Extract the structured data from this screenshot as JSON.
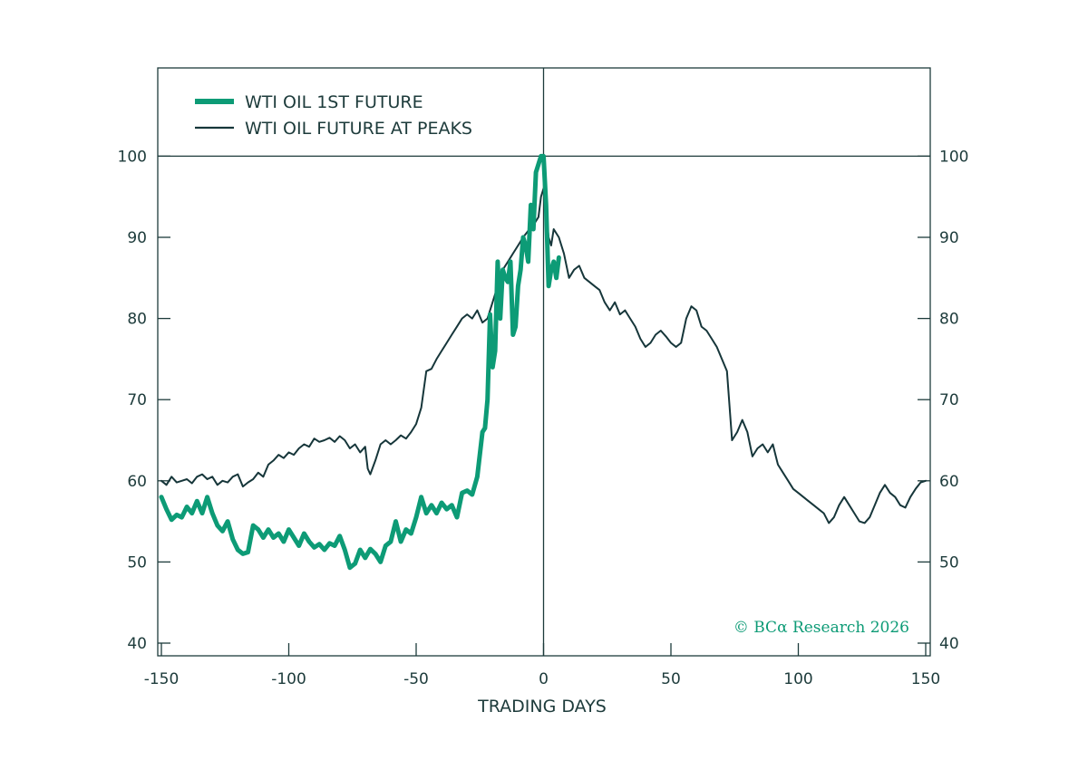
{
  "colors": {
    "primary": "#0d9b76",
    "secondary": "#16363a",
    "axis": "#1d3b3b"
  },
  "copyright": "© BCα Research 2026",
  "chart_data": {
    "type": "line",
    "xlabel": "TRADING DAYS",
    "ylabel": "",
    "xlim": [
      -150,
      150
    ],
    "ylim": [
      40,
      110
    ],
    "x_ticks": [
      "-150",
      "-100",
      "-50",
      "0",
      "50",
      "100",
      "150"
    ],
    "y_ticks": [
      "40",
      "50",
      "60",
      "70",
      "80",
      "90",
      "100"
    ],
    "legend_position": "top-left",
    "reference_lines": {
      "horizontal_y": 100,
      "vertical_x": 0
    },
    "series": [
      {
        "name": "WTI OIL 1ST FUTURE",
        "color": "#0d9b76",
        "points": [
          [
            -150,
            58
          ],
          [
            -148,
            56.5
          ],
          [
            -146,
            55.2
          ],
          [
            -144,
            55.8
          ],
          [
            -142,
            55.5
          ],
          [
            -140,
            56.8
          ],
          [
            -138,
            56
          ],
          [
            -136,
            57.5
          ],
          [
            -134,
            56
          ],
          [
            -132,
            58
          ],
          [
            -130,
            56
          ],
          [
            -128,
            54.5
          ],
          [
            -126,
            53.8
          ],
          [
            -124,
            55
          ],
          [
            -122,
            52.8
          ],
          [
            -120,
            51.5
          ],
          [
            -118,
            51
          ],
          [
            -116,
            51.2
          ],
          [
            -114,
            54.5
          ],
          [
            -112,
            54
          ],
          [
            -110,
            53
          ],
          [
            -108,
            54
          ],
          [
            -106,
            53
          ],
          [
            -104,
            53.5
          ],
          [
            -102,
            52.5
          ],
          [
            -100,
            54
          ],
          [
            -98,
            53
          ],
          [
            -96,
            52
          ],
          [
            -94,
            53.5
          ],
          [
            -92,
            52.5
          ],
          [
            -90,
            51.8
          ],
          [
            -88,
            52.2
          ],
          [
            -86,
            51.5
          ],
          [
            -84,
            52.3
          ],
          [
            -82,
            52
          ],
          [
            -80,
            53.2
          ],
          [
            -78,
            51.5
          ],
          [
            -76,
            49.3
          ],
          [
            -74,
            49.8
          ],
          [
            -72,
            51.5
          ],
          [
            -70,
            50.5
          ],
          [
            -68,
            51.6
          ],
          [
            -66,
            51
          ],
          [
            -64,
            50
          ],
          [
            -62,
            52
          ],
          [
            -60,
            52.5
          ],
          [
            -58,
            55
          ],
          [
            -56,
            52.5
          ],
          [
            -54,
            54
          ],
          [
            -52,
            53.5
          ],
          [
            -50,
            55.5
          ],
          [
            -48,
            58
          ],
          [
            -46,
            56
          ],
          [
            -44,
            57
          ],
          [
            -42,
            56
          ],
          [
            -40,
            57.3
          ],
          [
            -38,
            56.5
          ],
          [
            -36,
            57
          ],
          [
            -34,
            55.5
          ],
          [
            -32,
            58.5
          ],
          [
            -30,
            58.8
          ],
          [
            -28,
            58.3
          ],
          [
            -26,
            60.5
          ],
          [
            -24,
            66
          ],
          [
            -23,
            66.5
          ],
          [
            -22,
            70
          ],
          [
            -21,
            80.5
          ],
          [
            -20,
            74
          ],
          [
            -19,
            76
          ],
          [
            -18,
            87
          ],
          [
            -17,
            80
          ],
          [
            -16,
            86
          ],
          [
            -15,
            85
          ],
          [
            -14,
            84.5
          ],
          [
            -13,
            87
          ],
          [
            -12,
            78
          ],
          [
            -11,
            79
          ],
          [
            -10,
            84
          ],
          [
            -9,
            86
          ],
          [
            -8,
            90
          ],
          [
            -7,
            89
          ],
          [
            -6,
            87
          ],
          [
            -5,
            94
          ],
          [
            -4,
            91
          ],
          [
            -3,
            98
          ],
          [
            -2,
            99
          ],
          [
            -1,
            100
          ],
          [
            0,
            100
          ],
          [
            1,
            94
          ],
          [
            2,
            84
          ],
          [
            3,
            86
          ],
          [
            4,
            87
          ],
          [
            5,
            85
          ],
          [
            6,
            87.5
          ]
        ]
      },
      {
        "name": "WTI OIL FUTURE AT PEAKS",
        "color": "#16363a",
        "points": [
          [
            -150,
            60
          ],
          [
            -148,
            59.5
          ],
          [
            -146,
            60.5
          ],
          [
            -144,
            59.8
          ],
          [
            -142,
            60
          ],
          [
            -140,
            60.2
          ],
          [
            -138,
            59.7
          ],
          [
            -136,
            60.5
          ],
          [
            -134,
            60.8
          ],
          [
            -132,
            60.2
          ],
          [
            -130,
            60.5
          ],
          [
            -128,
            59.5
          ],
          [
            -126,
            60
          ],
          [
            -124,
            59.8
          ],
          [
            -122,
            60.5
          ],
          [
            -120,
            60.8
          ],
          [
            -118,
            59.3
          ],
          [
            -116,
            59.8
          ],
          [
            -114,
            60.2
          ],
          [
            -112,
            61
          ],
          [
            -110,
            60.5
          ],
          [
            -108,
            62
          ],
          [
            -106,
            62.5
          ],
          [
            -104,
            63.2
          ],
          [
            -102,
            62.8
          ],
          [
            -100,
            63.5
          ],
          [
            -98,
            63.2
          ],
          [
            -96,
            64
          ],
          [
            -94,
            64.5
          ],
          [
            -92,
            64.2
          ],
          [
            -90,
            65.2
          ],
          [
            -88,
            64.8
          ],
          [
            -86,
            65
          ],
          [
            -84,
            65.3
          ],
          [
            -82,
            64.8
          ],
          [
            -80,
            65.5
          ],
          [
            -78,
            65
          ],
          [
            -76,
            64
          ],
          [
            -74,
            64.5
          ],
          [
            -72,
            63.5
          ],
          [
            -70,
            64.2
          ],
          [
            -69,
            61.5
          ],
          [
            -68,
            60.8
          ],
          [
            -66,
            62.5
          ],
          [
            -64,
            64.5
          ],
          [
            -62,
            65
          ],
          [
            -60,
            64.5
          ],
          [
            -58,
            65
          ],
          [
            -56,
            65.6
          ],
          [
            -54,
            65.2
          ],
          [
            -52,
            66
          ],
          [
            -50,
            67
          ],
          [
            -48,
            69
          ],
          [
            -46,
            73.5
          ],
          [
            -44,
            73.8
          ],
          [
            -42,
            75
          ],
          [
            -40,
            76
          ],
          [
            -38,
            77
          ],
          [
            -36,
            78
          ],
          [
            -34,
            79
          ],
          [
            -32,
            80
          ],
          [
            -30,
            80.5
          ],
          [
            -28,
            80
          ],
          [
            -26,
            81
          ],
          [
            -24,
            79.5
          ],
          [
            -22,
            80
          ],
          [
            -20,
            82
          ],
          [
            -18,
            84
          ],
          [
            -16,
            86
          ],
          [
            -14,
            87
          ],
          [
            -12,
            88
          ],
          [
            -10,
            89
          ],
          [
            -8,
            90
          ],
          [
            -6,
            90.8
          ],
          [
            -4,
            91.5
          ],
          [
            -2,
            92.5
          ],
          [
            -1,
            95
          ],
          [
            0,
            96
          ],
          [
            1,
            93
          ],
          [
            2,
            90
          ],
          [
            3,
            89
          ],
          [
            4,
            91
          ],
          [
            6,
            90
          ],
          [
            8,
            88
          ],
          [
            10,
            85
          ],
          [
            12,
            86
          ],
          [
            14,
            86.5
          ],
          [
            16,
            85
          ],
          [
            18,
            84.5
          ],
          [
            20,
            84
          ],
          [
            22,
            83.5
          ],
          [
            24,
            82
          ],
          [
            26,
            81
          ],
          [
            28,
            82
          ],
          [
            30,
            80.5
          ],
          [
            32,
            81
          ],
          [
            34,
            80
          ],
          [
            36,
            79
          ],
          [
            38,
            77.5
          ],
          [
            40,
            76.5
          ],
          [
            42,
            77
          ],
          [
            44,
            78
          ],
          [
            46,
            78.5
          ],
          [
            48,
            77.8
          ],
          [
            50,
            77
          ],
          [
            52,
            76.5
          ],
          [
            54,
            77
          ],
          [
            56,
            80
          ],
          [
            58,
            81.5
          ],
          [
            60,
            81
          ],
          [
            62,
            79
          ],
          [
            64,
            78.5
          ],
          [
            66,
            77.5
          ],
          [
            68,
            76.5
          ],
          [
            70,
            75
          ],
          [
            72,
            73.5
          ],
          [
            74,
            65
          ],
          [
            76,
            66
          ],
          [
            78,
            67.5
          ],
          [
            80,
            66
          ],
          [
            82,
            63
          ],
          [
            84,
            64
          ],
          [
            86,
            64.5
          ],
          [
            88,
            63.5
          ],
          [
            90,
            64.5
          ],
          [
            92,
            62
          ],
          [
            94,
            61
          ],
          [
            96,
            60
          ],
          [
            98,
            59
          ],
          [
            100,
            58.5
          ],
          [
            102,
            58
          ],
          [
            104,
            57.5
          ],
          [
            106,
            57
          ],
          [
            108,
            56.5
          ],
          [
            110,
            56
          ],
          [
            112,
            54.8
          ],
          [
            114,
            55.5
          ],
          [
            116,
            57
          ],
          [
            118,
            58
          ],
          [
            120,
            57
          ],
          [
            122,
            56
          ],
          [
            124,
            55
          ],
          [
            126,
            54.8
          ],
          [
            128,
            55.5
          ],
          [
            130,
            57
          ],
          [
            132,
            58.5
          ],
          [
            134,
            59.5
          ],
          [
            136,
            58.5
          ],
          [
            138,
            58
          ],
          [
            140,
            57
          ],
          [
            142,
            56.7
          ],
          [
            144,
            58
          ],
          [
            146,
            59
          ],
          [
            148,
            59.8
          ],
          [
            150,
            60
          ]
        ]
      }
    ]
  }
}
